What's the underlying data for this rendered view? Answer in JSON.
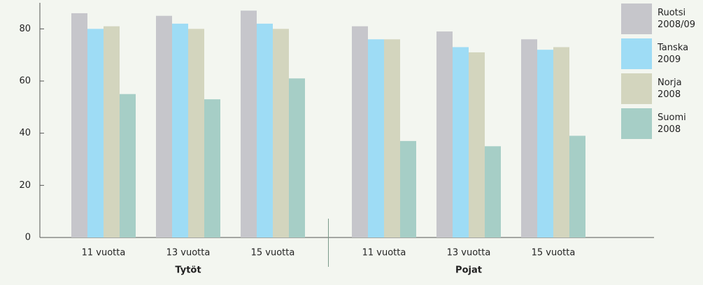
{
  "chart_data": {
    "type": "bar",
    "categories": [
      "11 vuotta",
      "13 vuotta",
      "15 vuotta",
      "11 vuotta",
      "13 vuotta",
      "15 vuotta"
    ],
    "groups": [
      "Tytöt",
      "Pojat"
    ],
    "series": [
      {
        "name": "Ruotsi 2008/09",
        "color": "#c6c6cb",
        "values": [
          86,
          85,
          87,
          81,
          79,
          76
        ]
      },
      {
        "name": "Tanska 2009",
        "color": "#9edcf5",
        "values": [
          80,
          82,
          82,
          76,
          73,
          72
        ]
      },
      {
        "name": "Norja 2008",
        "color": "#d3d5be",
        "values": [
          81,
          80,
          80,
          76,
          71,
          73
        ]
      },
      {
        "name": "Suomi 2008",
        "color": "#a6cec6",
        "values": [
          55,
          53,
          61,
          37,
          35,
          39
        ]
      }
    ],
    "ylim": [
      0,
      90
    ],
    "yticks": [
      0,
      20,
      40,
      60,
      80
    ]
  }
}
